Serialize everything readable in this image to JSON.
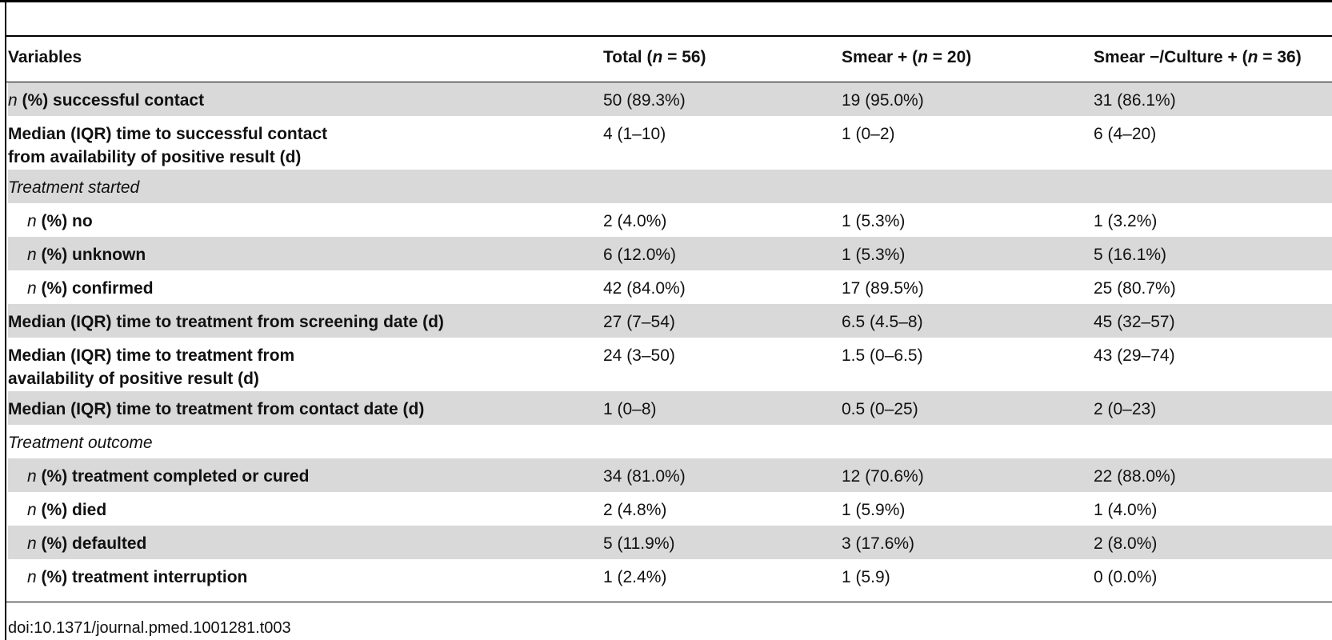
{
  "table": {
    "columns": {
      "variables": "Variables",
      "total": {
        "prefix": "Total (",
        "n": "n",
        "eq": " = 56)"
      },
      "smear_pos": {
        "prefix": "Smear + (",
        "n": "n",
        "eq": " = 20)"
      },
      "smear_neg": {
        "prefix": "Smear −/Culture + (",
        "n": "n",
        "eq": " = 36)"
      }
    },
    "rows": [
      {
        "type": "main",
        "shade": true,
        "n_prefix": "n",
        "label_line1": " (%) successful contact",
        "label_line2": "",
        "total": "50 (89.3%)",
        "smear_pos": "19 (95.0%)",
        "smear_neg": "31 (86.1%)"
      },
      {
        "type": "main",
        "shade": false,
        "n_prefix": "",
        "label_line1": "Median (IQR) time to successful contact",
        "label_line2": "from availability of positive result (d)",
        "total": "4 (1–10)",
        "smear_pos": "1 (0–2)",
        "smear_neg": "6 (4–20)"
      },
      {
        "type": "section",
        "shade": true,
        "n_prefix": "",
        "label_line1": "Treatment started",
        "label_line2": "",
        "total": "",
        "smear_pos": "",
        "smear_neg": ""
      },
      {
        "type": "sub",
        "shade": false,
        "n_prefix": "n",
        "label_line1": " (%) no",
        "label_line2": "",
        "total": "2 (4.0%)",
        "smear_pos": "1 (5.3%)",
        "smear_neg": "1 (3.2%)"
      },
      {
        "type": "sub",
        "shade": true,
        "n_prefix": "n",
        "label_line1": " (%) unknown",
        "label_line2": "",
        "total": "6 (12.0%)",
        "smear_pos": "1 (5.3%)",
        "smear_neg": "5 (16.1%)"
      },
      {
        "type": "sub",
        "shade": false,
        "n_prefix": "n",
        "label_line1": " (%) confirmed",
        "label_line2": "",
        "total": "42 (84.0%)",
        "smear_pos": "17 (89.5%)",
        "smear_neg": "25 (80.7%)"
      },
      {
        "type": "main",
        "shade": true,
        "n_prefix": "",
        "label_line1": "Median (IQR) time to treatment from screening date (d)",
        "label_line2": "",
        "total": "27 (7–54)",
        "smear_pos": "6.5 (4.5–8)",
        "smear_neg": "45 (32–57)"
      },
      {
        "type": "main",
        "shade": false,
        "n_prefix": "",
        "label_line1": "Median (IQR) time to treatment from",
        "label_line2": "availability of positive result (d)",
        "total": "24 (3–50)",
        "smear_pos": "1.5 (0–6.5)",
        "smear_neg": "43 (29–74)"
      },
      {
        "type": "main",
        "shade": true,
        "n_prefix": "",
        "label_line1": "Median (IQR) time to treatment from contact date (d)",
        "label_line2": "",
        "total": "1 (0–8)",
        "smear_pos": "0.5 (0–25)",
        "smear_neg": "2 (0–23)"
      },
      {
        "type": "section",
        "shade": false,
        "n_prefix": "",
        "label_line1": "Treatment outcome",
        "label_line2": "",
        "total": "",
        "smear_pos": "",
        "smear_neg": ""
      },
      {
        "type": "sub",
        "shade": true,
        "n_prefix": "n",
        "label_line1": " (%) treatment completed or cured",
        "label_line2": "",
        "total": "34 (81.0%)",
        "smear_pos": "12 (70.6%)",
        "smear_neg": "22 (88.0%)"
      },
      {
        "type": "sub",
        "shade": false,
        "n_prefix": "n",
        "label_line1": " (%) died",
        "label_line2": "",
        "total": "2 (4.8%)",
        "smear_pos": "1 (5.9%)",
        "smear_neg": "1 (4.0%)"
      },
      {
        "type": "sub",
        "shade": true,
        "n_prefix": "n",
        "label_line1": " (%) defaulted",
        "label_line2": "",
        "total": "5 (11.9%)",
        "smear_pos": "3 (17.6%)",
        "smear_neg": "2 (8.0%)"
      },
      {
        "type": "sub",
        "shade": false,
        "n_prefix": "n",
        "label_line1": " (%) treatment interruption",
        "label_line2": "",
        "total": "1 (2.4%)",
        "smear_pos": "1 (5.9)",
        "smear_neg": "0 (0.0%)"
      }
    ]
  },
  "footer": {
    "doi": "doi:10.1371/journal.pmed.1001281.t003"
  }
}
